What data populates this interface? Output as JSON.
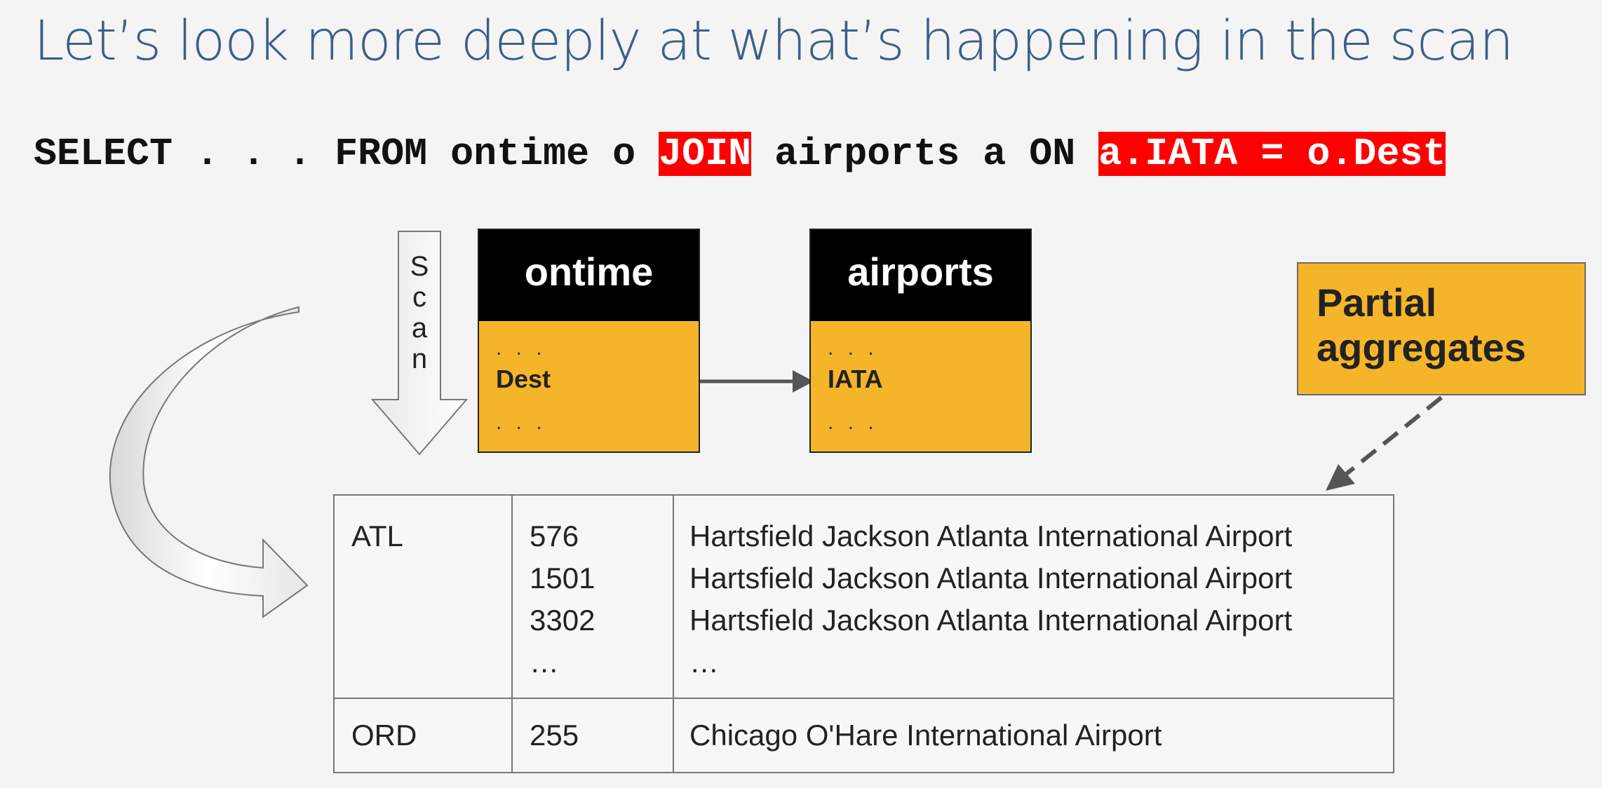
{
  "title": "Let’s look more deeply at what’s happening in the scan",
  "sql": {
    "part1": "SELECT . . . FROM ontime o ",
    "join": "JOIN",
    "part2": " airports a ON ",
    "condition": "a.IATA = o.Dest"
  },
  "scan_label": [
    "S",
    "c",
    "a",
    "n"
  ],
  "tables": {
    "ontime": {
      "name": "ontime",
      "dots_top": ". . .",
      "field": "Dest",
      "dots_bottom": ". . ."
    },
    "airports": {
      "name": "airports",
      "dots_top": ". . .",
      "field": "IATA",
      "dots_bottom": ". . ."
    }
  },
  "partial_aggregates": {
    "line1": "Partial",
    "line2": "aggregates"
  },
  "result": {
    "rows": [
      {
        "code": "ATL",
        "ids": [
          "576",
          "1501",
          "3302",
          "…"
        ],
        "names": [
          "Hartsfield Jackson Atlanta International Airport",
          "Hartsfield Jackson Atlanta International Airport",
          "Hartsfield Jackson Atlanta International Airport",
          "…"
        ]
      },
      {
        "code": "ORD",
        "ids": [
          "255"
        ],
        "names": [
          "Chicago O'Hare International Airport"
        ]
      }
    ]
  },
  "colors": {
    "title": "#3e5e86",
    "highlight": "#ff0000",
    "table_header": "#000000",
    "table_body": "#f5b52a",
    "arrow": "#555555"
  }
}
